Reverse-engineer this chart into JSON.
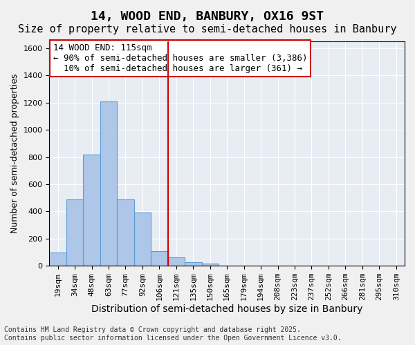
{
  "title": "14, WOOD END, BANBURY, OX16 9ST",
  "subtitle": "Size of property relative to semi-detached houses in Banbury",
  "xlabel": "Distribution of semi-detached houses by size in Banbury",
  "ylabel": "Number of semi-detached properties",
  "bins": [
    "19sqm",
    "34sqm",
    "48sqm",
    "63sqm",
    "77sqm",
    "92sqm",
    "106sqm",
    "121sqm",
    "135sqm",
    "150sqm",
    "165sqm",
    "179sqm",
    "194sqm",
    "208sqm",
    "223sqm",
    "237sqm",
    "252sqm",
    "266sqm",
    "281sqm",
    "295sqm",
    "310sqm"
  ],
  "values": [
    100,
    490,
    820,
    1210,
    490,
    390,
    110,
    60,
    25,
    15,
    0,
    0,
    0,
    0,
    0,
    0,
    0,
    0,
    0,
    0,
    0
  ],
  "bar_color": "#aec6e8",
  "bar_edge_color": "#5b9bd5",
  "line_x_index": 6.5,
  "property_size": "115sqm",
  "pct_smaller": 90,
  "n_smaller": 3386,
  "pct_larger": 10,
  "n_larger": 361,
  "annotation_box_color": "#ffffff",
  "annotation_box_edge": "#cc0000",
  "line_color": "#cc0000",
  "bg_color": "#e8edf4",
  "grid_color": "#ffffff",
  "ylim": [
    0,
    1650
  ],
  "yticks": [
    0,
    200,
    400,
    600,
    800,
    1000,
    1200,
    1400,
    1600
  ],
  "footer": "Contains HM Land Registry data © Crown copyright and database right 2025.\nContains public sector information licensed under the Open Government Licence v3.0.",
  "title_fontsize": 13,
  "subtitle_fontsize": 11,
  "xlabel_fontsize": 10,
  "ylabel_fontsize": 9,
  "tick_fontsize": 8,
  "annotation_fontsize": 9,
  "footer_fontsize": 7
}
